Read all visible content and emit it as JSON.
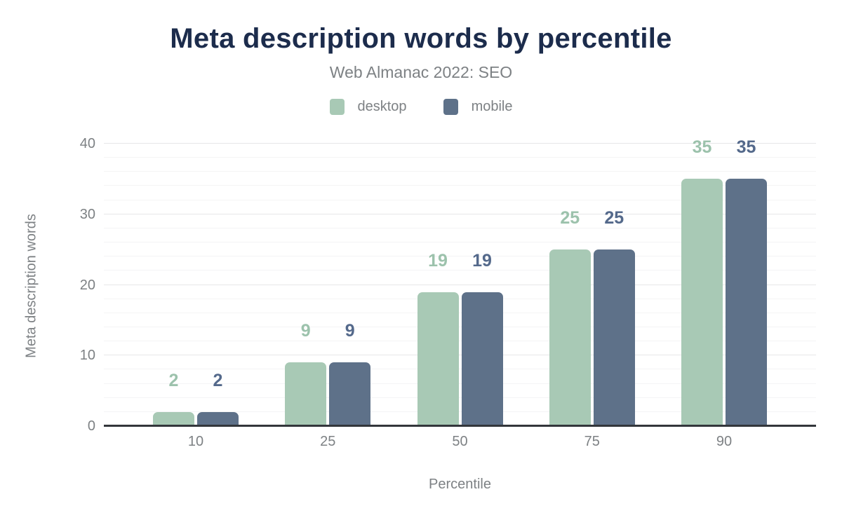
{
  "header": {
    "title": "Meta description words by percentile",
    "subtitle": "Web Almanac 2022: SEO"
  },
  "chart_data": {
    "type": "bar",
    "title": "Meta description words by percentile",
    "subtitle": "Web Almanac 2022: SEO",
    "categories": [
      "10",
      "25",
      "50",
      "75",
      "90"
    ],
    "series": [
      {
        "name": "desktop",
        "color": "#a8c9b5",
        "label_color": "#9cc2ac",
        "values": [
          2,
          9,
          19,
          25,
          35
        ]
      },
      {
        "name": "mobile",
        "color": "#5e7189",
        "label_color": "#54698b",
        "values": [
          2,
          9,
          19,
          25,
          35
        ]
      }
    ],
    "xlabel": "Percentile",
    "ylabel": "Meta description words",
    "ylim": [
      0,
      40
    ],
    "yticks": [
      0,
      10,
      20,
      30,
      40
    ],
    "minor_grid_step": 2,
    "major_grid_step": 10,
    "grid": true,
    "legend_position": "top",
    "bar_labels": true
  },
  "colors": {
    "background": "#ffffff",
    "title_text": "#1c2c4c",
    "muted_text": "#7d8184",
    "axis_line": "#33363b",
    "grid_major": "#e7e7e8",
    "grid_minor": "#f4f4f5"
  }
}
